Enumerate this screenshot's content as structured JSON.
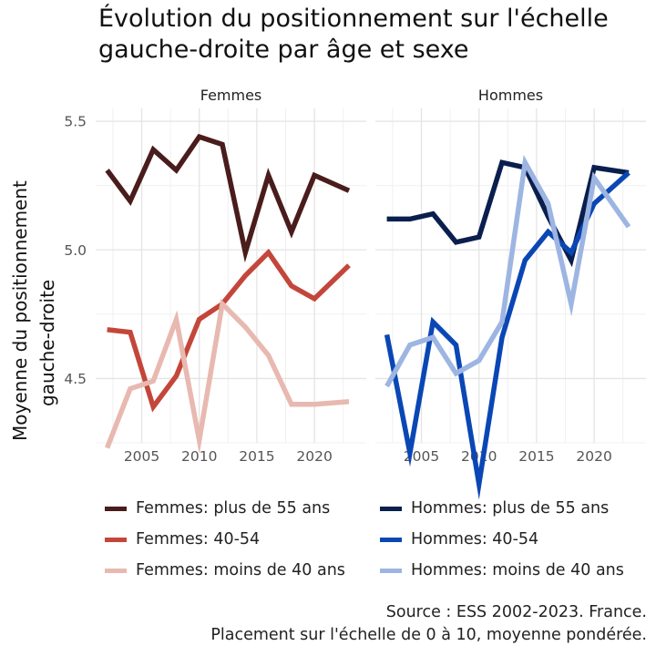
{
  "title_lines": [
    "Évolution du positionnement sur l'échelle",
    "gauche-droite par âge et sexe"
  ],
  "caption_lines": [
    "Source : ESS 2002-2023. France.",
    "Placement sur l'échelle de 0 à 10, moyenne pondérée."
  ],
  "chart_data": {
    "type": "line",
    "title": "Évolution du positionnement sur l'échelle gauche-droite par âge et sexe",
    "ylabel_lines": [
      "Moyenne du positionnement",
      "gauche-droite"
    ],
    "xlabel": "",
    "xlim": [
      2001,
      2024.5
    ],
    "ylim": [
      4.25,
      5.55
    ],
    "x_ticks": [
      2005,
      2010,
      2015,
      2020
    ],
    "y_ticks": [
      4.5,
      5.0,
      5.5
    ],
    "y_tick_labels": [
      "4.5",
      "5.0",
      "5.5"
    ],
    "grid": true,
    "legend_position": "bottom",
    "facets": [
      {
        "label": "Femmes",
        "series": [
          {
            "name": "Femmes: plus de 55 ans",
            "color": "#4a1c1c",
            "x": [
              2002,
              2004,
              2006,
              2008,
              2010,
              2012,
              2014,
              2016,
              2018,
              2020,
              2023
            ],
            "values": [
              5.31,
              5.19,
              5.39,
              5.31,
              5.44,
              5.41,
              4.99,
              5.29,
              5.07,
              5.29,
              5.23
            ]
          },
          {
            "name": "Femmes: 40-54",
            "color": "#c4463a",
            "x": [
              2002,
              2004,
              2006,
              2008,
              2010,
              2012,
              2014,
              2016,
              2018,
              2020,
              2023
            ],
            "values": [
              4.69,
              4.68,
              4.39,
              4.51,
              4.73,
              4.79,
              4.9,
              4.99,
              4.86,
              4.81,
              4.94
            ]
          },
          {
            "name": "Femmes: moins de 40 ans",
            "color": "#e8b9b0",
            "x": [
              2002,
              2004,
              2006,
              2008,
              2010,
              2012,
              2014,
              2016,
              2018,
              2020,
              2023
            ],
            "values": [
              4.23,
              4.46,
              4.49,
              4.73,
              4.26,
              4.79,
              4.7,
              4.59,
              4.4,
              4.4,
              4.41
            ]
          }
        ]
      },
      {
        "label": "Hommes",
        "series": [
          {
            "name": "Hommes: plus de 55 ans",
            "color": "#0a1f4d",
            "x": [
              2002,
              2004,
              2006,
              2008,
              2010,
              2012,
              2014,
              2016,
              2018,
              2020,
              2023
            ],
            "values": [
              5.12,
              5.12,
              5.14,
              5.03,
              5.05,
              5.34,
              5.32,
              5.13,
              4.96,
              5.32,
              5.3
            ]
          },
          {
            "name": "Hommes: 40-54",
            "color": "#0a47b5",
            "x": [
              2002,
              2004,
              2006,
              2008,
              2010,
              2012,
              2014,
              2016,
              2018,
              2020,
              2023
            ],
            "values": [
              4.67,
              4.21,
              4.72,
              4.63,
              4.09,
              4.66,
              4.96,
              5.07,
              4.99,
              5.18,
              5.3
            ]
          },
          {
            "name": "Hommes: moins de 40 ans",
            "color": "#9db5e2",
            "x": [
              2002,
              2004,
              2006,
              2008,
              2010,
              2012,
              2014,
              2016,
              2018,
              2020,
              2023
            ],
            "values": [
              4.47,
              4.63,
              4.66,
              4.52,
              4.57,
              4.72,
              5.34,
              5.18,
              4.79,
              5.28,
              5.09
            ]
          }
        ]
      }
    ],
    "legend": [
      "Femmes: plus de 55 ans",
      "Hommes: plus de 55 ans",
      "Femmes: 40-54",
      "Hommes: 40-54",
      "Femmes: moins de 40 ans",
      "Hommes: moins de 40 ans"
    ]
  }
}
